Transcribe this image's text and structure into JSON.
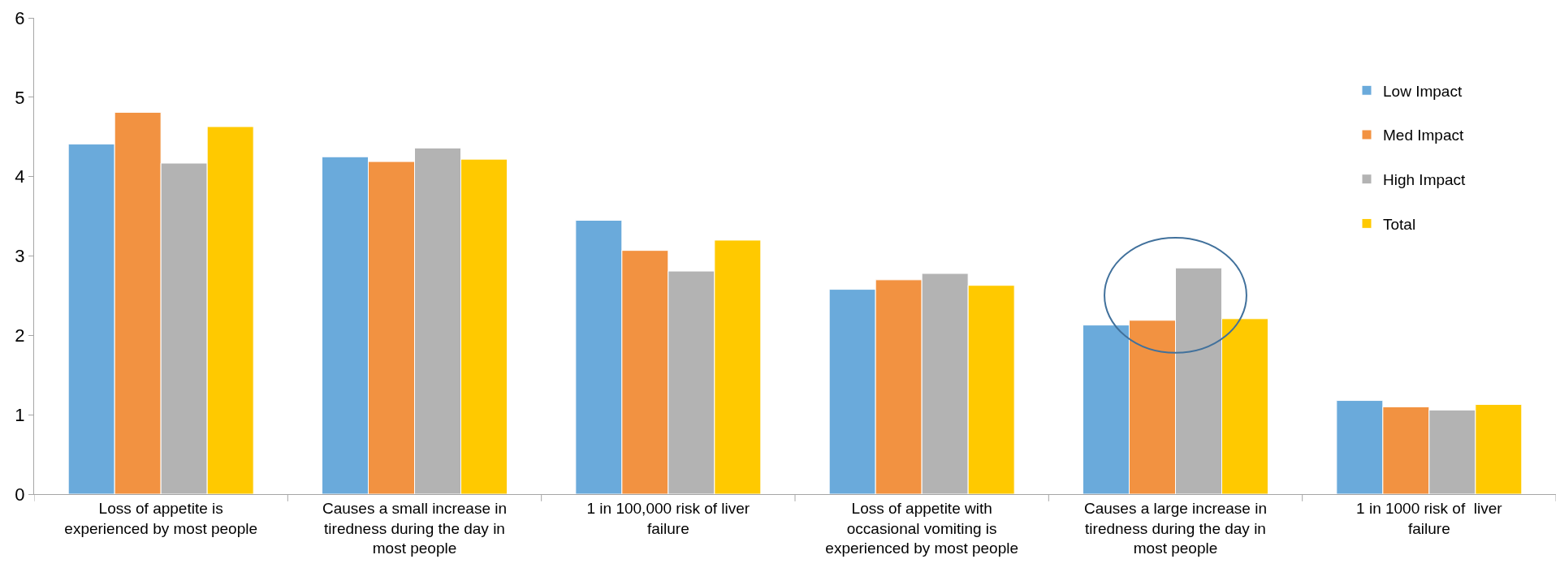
{
  "chart_data": {
    "type": "bar",
    "categories": [
      "Loss of appetite is experienced by most people",
      "Causes a small increase in tiredness during the day in most people",
      "1 in 100,000 risk of liver failure",
      "Loss of appetite with occasional vomiting is experienced by most people",
      "Causes a large increase in tiredness during the day in most people",
      "1 in 1000 risk of  liver failure"
    ],
    "series": [
      {
        "name": "Low Impact",
        "color": "#6aaadb",
        "values": [
          4.41,
          4.25,
          3.45,
          2.58,
          2.13,
          1.18
        ]
      },
      {
        "name": "Med Impact",
        "color": "#f29241",
        "values": [
          4.81,
          4.19,
          3.07,
          2.7,
          2.19,
          1.1
        ]
      },
      {
        "name": "High Impact",
        "color": "#b3b3b3",
        "values": [
          4.17,
          4.36,
          2.81,
          2.78,
          2.85,
          1.06
        ]
      },
      {
        "name": "Total",
        "color": "#ffc900",
        "values": [
          4.63,
          4.22,
          3.2,
          2.63,
          2.21,
          1.13
        ]
      }
    ],
    "ylim": [
      0,
      6
    ],
    "yticks": [
      0,
      1,
      2,
      3,
      4,
      5,
      6
    ],
    "grid": false,
    "legend": "right"
  }
}
